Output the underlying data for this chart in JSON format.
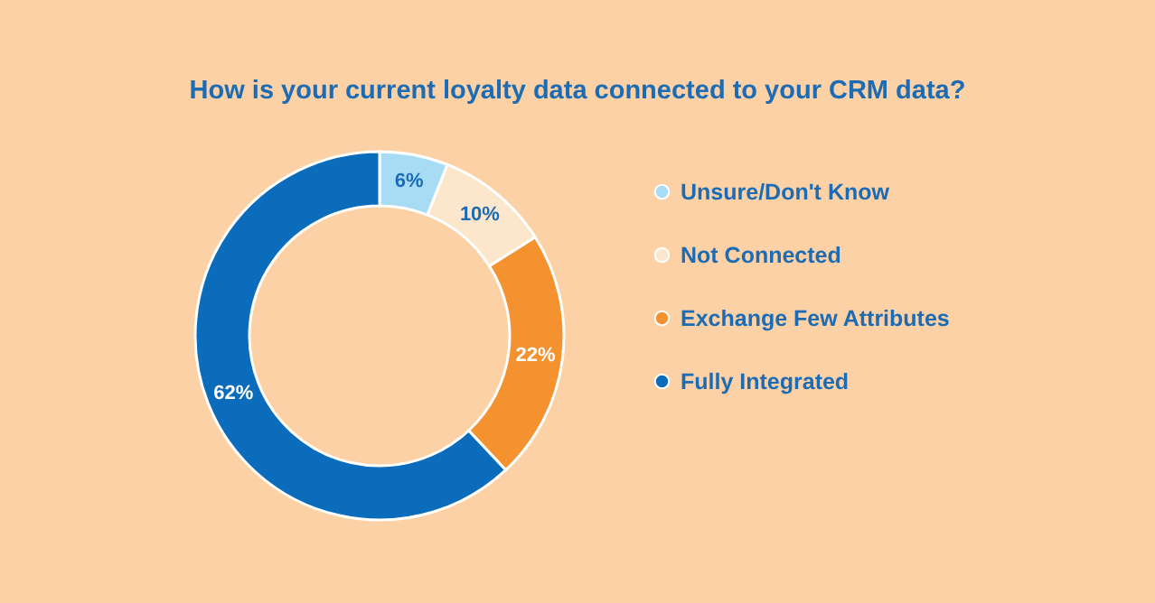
{
  "chart_data": {
    "type": "donut",
    "title": "How is your current loyalty data connected to your CRM data?",
    "categories": [
      "Unsure/Don't Know",
      "Not Connected",
      "Exchange Few Attributes",
      "Fully Integrated"
    ],
    "values": [
      6,
      10,
      22,
      62
    ],
    "colors": [
      "#a8dcf5",
      "#fde7cc",
      "#f3922f",
      "#0b6cbb"
    ],
    "value_labels": [
      "6%",
      "10%",
      "22%",
      "62%"
    ],
    "legend": "right"
  }
}
